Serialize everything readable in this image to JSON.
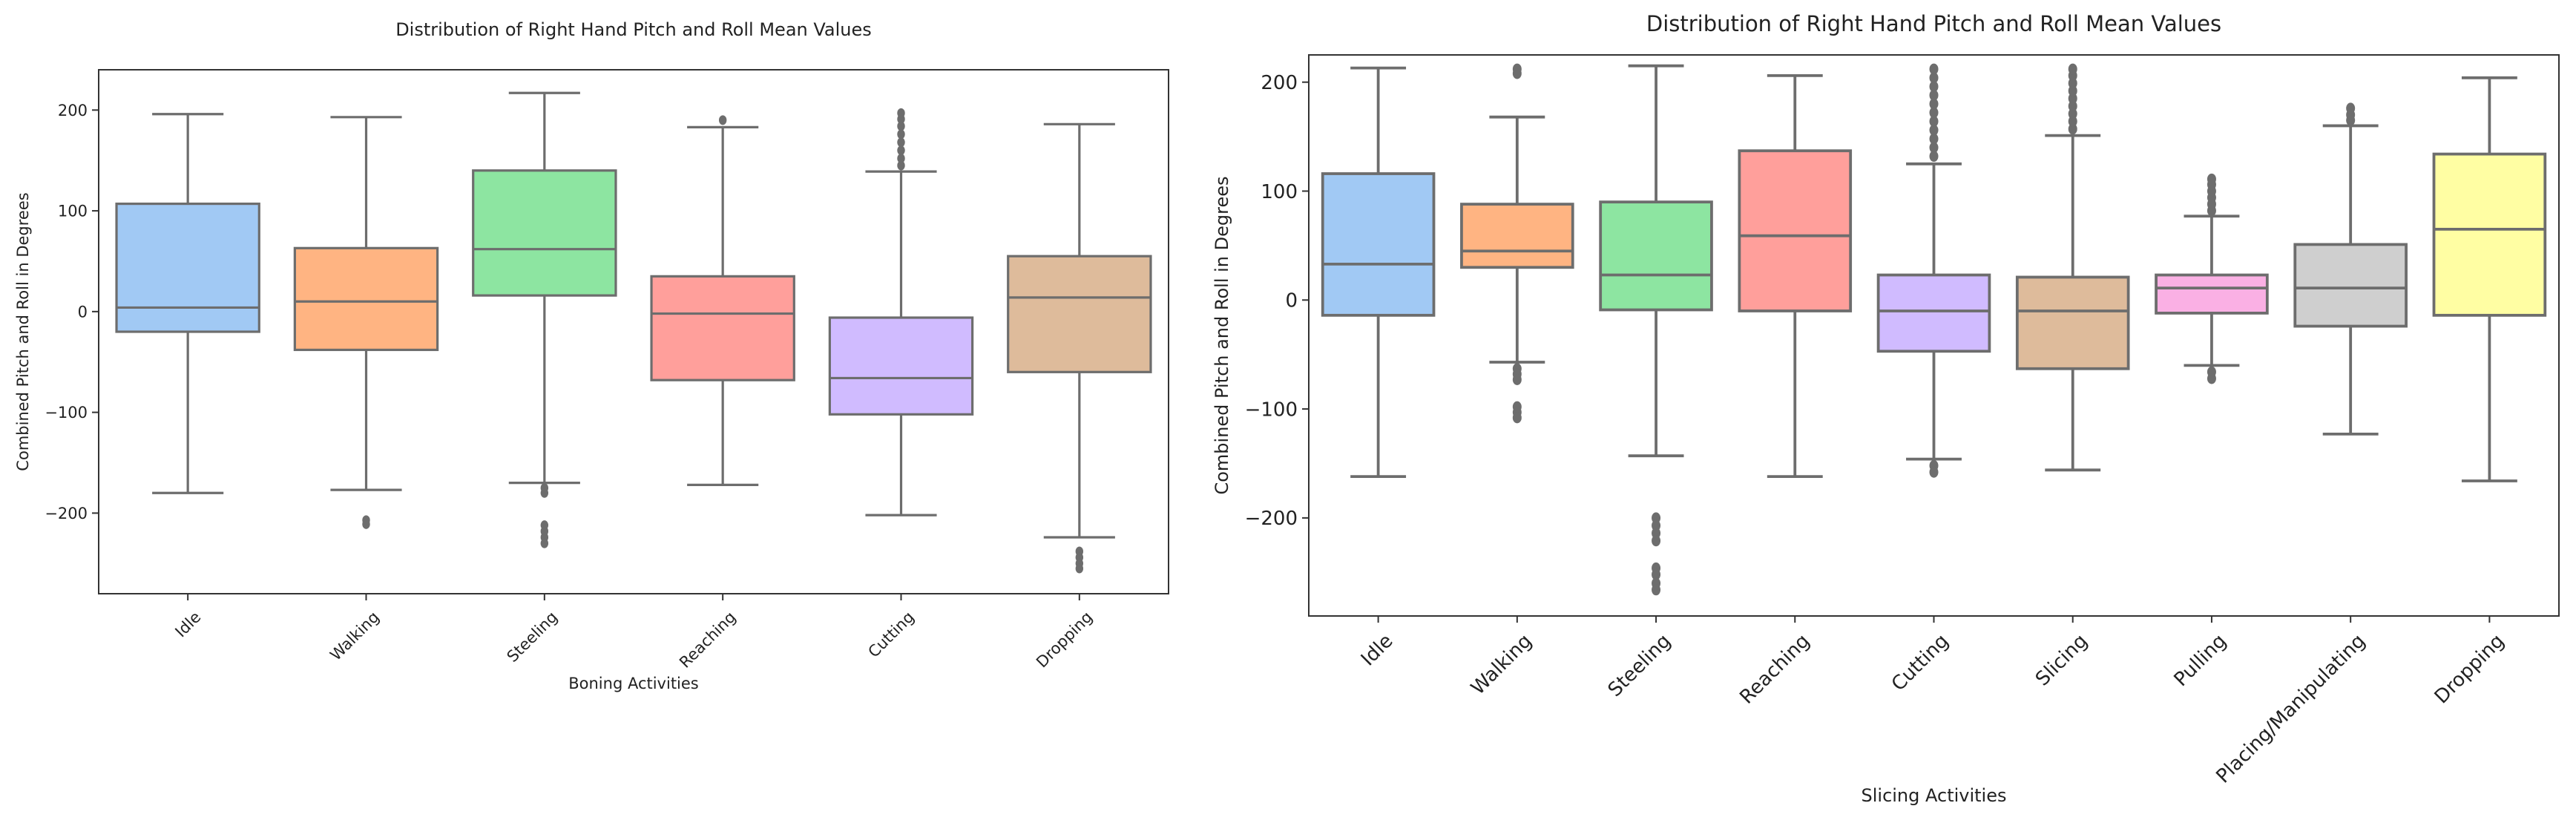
{
  "chart_data": [
    {
      "type": "box",
      "title": "Distribution of Right Hand Pitch and Roll Mean Values",
      "xlabel": "Boning Activities",
      "ylabel": "Combined Pitch and Roll in Degrees",
      "ylim": [
        -280,
        240
      ],
      "yticks": [
        -200,
        -100,
        0,
        100,
        200
      ],
      "grid": false,
      "categories": [
        "Idle",
        "Walking",
        "Steeling",
        "Reaching",
        "Cutting",
        "Dropping"
      ],
      "boxes": [
        {
          "category": "Idle",
          "color": "#a1c9f4",
          "whisker_low": -180,
          "q1": -20,
          "median": 4,
          "q3": 107,
          "whisker_high": 196,
          "outliers": []
        },
        {
          "category": "Walking",
          "color": "#ffb482",
          "whisker_low": -177,
          "q1": -38,
          "median": 10,
          "q3": 63,
          "whisker_high": 193,
          "outliers": [
            -207,
            -211
          ]
        },
        {
          "category": "Steeling",
          "color": "#8de5a1",
          "whisker_low": -170,
          "q1": 16,
          "median": 62,
          "q3": 140,
          "whisker_high": 217,
          "outliers": [
            -175,
            -180,
            -212,
            -218,
            -224,
            -230
          ]
        },
        {
          "category": "Reaching",
          "color": "#ff9f9b",
          "whisker_low": -172,
          "q1": -68,
          "median": -2,
          "q3": 35,
          "whisker_high": 183,
          "outliers": [
            190
          ]
        },
        {
          "category": "Cutting",
          "color": "#d0bbff",
          "whisker_low": -202,
          "q1": -102,
          "median": -66,
          "q3": -6,
          "whisker_high": 139,
          "outliers": [
            145,
            152,
            160,
            168,
            176,
            184,
            191,
            197
          ]
        },
        {
          "category": "Dropping",
          "color": "#debb9b",
          "whisker_low": -224,
          "q1": -60,
          "median": 14,
          "q3": 55,
          "whisker_high": 186,
          "outliers": [
            -238,
            -244,
            -250,
            -255
          ]
        }
      ]
    },
    {
      "type": "box",
      "title": "Distribution of Right Hand Pitch and Roll Mean Values",
      "xlabel": "Slicing Activities",
      "ylabel": "Combined Pitch and Roll in Degrees",
      "ylim": [
        -290,
        225
      ],
      "yticks": [
        -200,
        -100,
        0,
        100,
        200
      ],
      "grid": false,
      "categories": [
        "Idle",
        "Walking",
        "Steeling",
        "Reaching",
        "Cutting",
        "Slicing",
        "Pulling",
        "Placing/Manipulating",
        "Dropping"
      ],
      "boxes": [
        {
          "category": "Idle",
          "color": "#a1c9f4",
          "whisker_low": -162,
          "q1": -14,
          "median": 33,
          "q3": 116,
          "whisker_high": 213,
          "outliers": []
        },
        {
          "category": "Walking",
          "color": "#ffb482",
          "whisker_low": -57,
          "q1": 30,
          "median": 45,
          "q3": 88,
          "whisker_high": 168,
          "outliers": [
            208,
            212,
            -63,
            -68,
            -73,
            -98,
            -103,
            -108
          ]
        },
        {
          "category": "Steeling",
          "color": "#8de5a1",
          "whisker_low": -143,
          "q1": -9,
          "median": 23,
          "q3": 90,
          "whisker_high": 215,
          "outliers": [
            -200,
            -207,
            -214,
            -221,
            -246,
            -252,
            -260,
            -266
          ]
        },
        {
          "category": "Reaching",
          "color": "#ff9f9b",
          "whisker_low": -162,
          "q1": -10,
          "median": 59,
          "q3": 137,
          "whisker_high": 206,
          "outliers": []
        },
        {
          "category": "Cutting",
          "color": "#d0bbff",
          "whisker_low": -146,
          "q1": -47,
          "median": -10,
          "q3": 23,
          "whisker_high": 125,
          "outliers": [
            132,
            140,
            148,
            156,
            164,
            172,
            180,
            188,
            196,
            204,
            212,
            -152,
            -158
          ]
        },
        {
          "category": "Slicing",
          "color": "#debb9b",
          "whisker_low": -156,
          "q1": -63,
          "median": -10,
          "q3": 21,
          "whisker_high": 151,
          "outliers": [
            157,
            164,
            171,
            178,
            185,
            192,
            199,
            206,
            212
          ]
        },
        {
          "category": "Pulling",
          "color": "#fab0e4",
          "whisker_low": -60,
          "q1": -12,
          "median": 11,
          "q3": 23,
          "whisker_high": 77,
          "outliers": [
            82,
            88,
            94,
            100,
            106,
            111,
            -66,
            -72
          ]
        },
        {
          "category": "Placing/Manipulating",
          "color": "#cfcfcf",
          "whisker_low": -123,
          "q1": -24,
          "median": 11,
          "q3": 51,
          "whisker_high": 160,
          "outliers": [
            165,
            170,
            176
          ]
        },
        {
          "category": "Dropping",
          "color": "#fffea3",
          "whisker_low": -166,
          "q1": -14,
          "median": 65,
          "q3": 134,
          "whisker_high": 204,
          "outliers": []
        }
      ]
    }
  ]
}
